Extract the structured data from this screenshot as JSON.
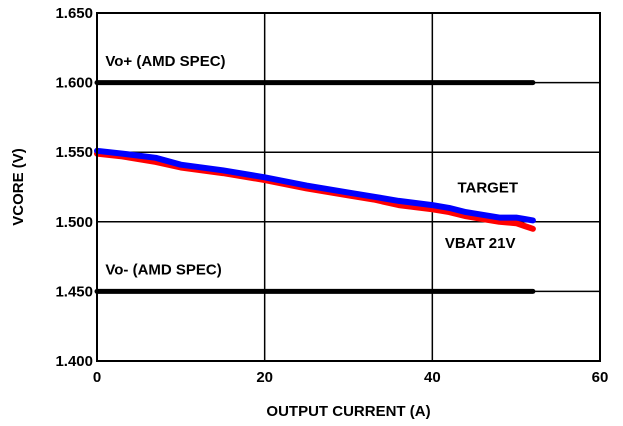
{
  "chart_data": {
    "type": "line",
    "xlabel": "OUTPUT CURRENT (A)",
    "ylabel": "VCORE (V)",
    "xlim": [
      0,
      60
    ],
    "ylim": [
      1.4,
      1.65
    ],
    "x_ticks": [
      0,
      20,
      40,
      60
    ],
    "y_ticks": [
      1.4,
      1.45,
      1.5,
      1.55,
      1.6,
      1.65
    ],
    "x_tick_labels": [
      "0",
      "20",
      "40",
      "60"
    ],
    "y_tick_labels": [
      "1.400",
      "1.450",
      "1.500",
      "1.550",
      "1.600",
      "1.650"
    ],
    "grid": true,
    "series": [
      {
        "name": "",
        "color": "#000000",
        "values_x": [
          0,
          52
        ],
        "values_y": [
          1.6,
          1.6
        ]
      },
      {
        "name": "",
        "color": "#000000",
        "values_x": [
          0,
          52
        ],
        "values_y": [
          1.45,
          1.45
        ]
      },
      {
        "name": "",
        "color": "#ff0000",
        "values_x": [
          0,
          3,
          7,
          10,
          15,
          20,
          25,
          30,
          33,
          36,
          40,
          42,
          44,
          46,
          48,
          50,
          51,
          52
        ],
        "values_y": [
          1.549,
          1.547,
          1.543,
          1.539,
          1.535,
          1.53,
          1.524,
          1.519,
          1.516,
          1.512,
          1.509,
          1.507,
          1.504,
          1.502,
          1.5,
          1.499,
          1.497,
          1.495
        ]
      },
      {
        "name": "",
        "color": "#0000ff",
        "values_x": [
          0,
          3,
          7,
          10,
          15,
          20,
          25,
          30,
          33,
          36,
          40,
          42,
          44,
          46,
          48,
          50,
          51,
          52
        ],
        "values_y": [
          1.551,
          1.549,
          1.546,
          1.541,
          1.537,
          1.532,
          1.526,
          1.521,
          1.518,
          1.515,
          1.512,
          1.51,
          1.507,
          1.505,
          1.503,
          1.503,
          1.502,
          1.501
        ]
      }
    ],
    "annotations": [
      {
        "text": "Vo+ (AMD SPEC)",
        "x": 1,
        "y": 1.612
      },
      {
        "text": "Vo- (AMD SPEC)",
        "x": 1,
        "y": 1.462
      },
      {
        "text": "TARGET",
        "x": 43,
        "y": 1.521
      },
      {
        "text": "VBAT 21V",
        "x": 41.5,
        "y": 1.481
      }
    ]
  }
}
